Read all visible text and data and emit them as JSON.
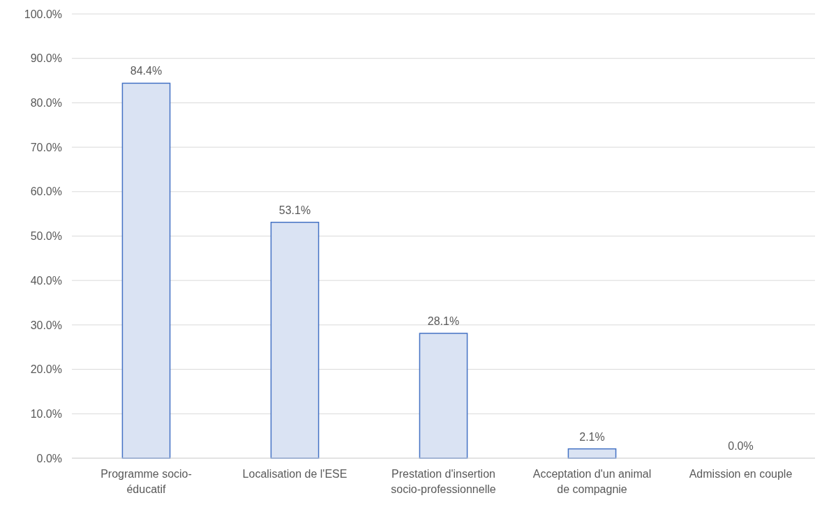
{
  "chart_data": {
    "type": "bar",
    "categories": [
      "Programme socio-éducatif",
      "Localisation de l'ESE",
      "Prestation d'insertion socio-professionnelle",
      "Acceptation d'un animal de compagnie",
      "Admission en couple"
    ],
    "values": [
      84.4,
      53.1,
      28.1,
      2.1,
      0.0
    ],
    "value_labels": [
      "84.4%",
      "53.1%",
      "28.1%",
      "2.1%",
      "0.0%"
    ],
    "color": "#dae3f3",
    "ylim": [
      0,
      100
    ],
    "yticks": [
      {
        "value": 0,
        "label": "0.0%"
      },
      {
        "value": 10,
        "label": "10.0%"
      },
      {
        "value": 20,
        "label": "20.0%"
      },
      {
        "value": 30,
        "label": "30.0%"
      },
      {
        "value": 40,
        "label": "40.0%"
      },
      {
        "value": 50,
        "label": "50.0%"
      },
      {
        "value": 60,
        "label": "60.0%"
      },
      {
        "value": 70,
        "label": "70.0%"
      },
      {
        "value": 80,
        "label": "80.0%"
      },
      {
        "value": 90,
        "label": "90.0%"
      },
      {
        "value": 100,
        "label": "100.0%"
      }
    ],
    "grid": "y"
  }
}
